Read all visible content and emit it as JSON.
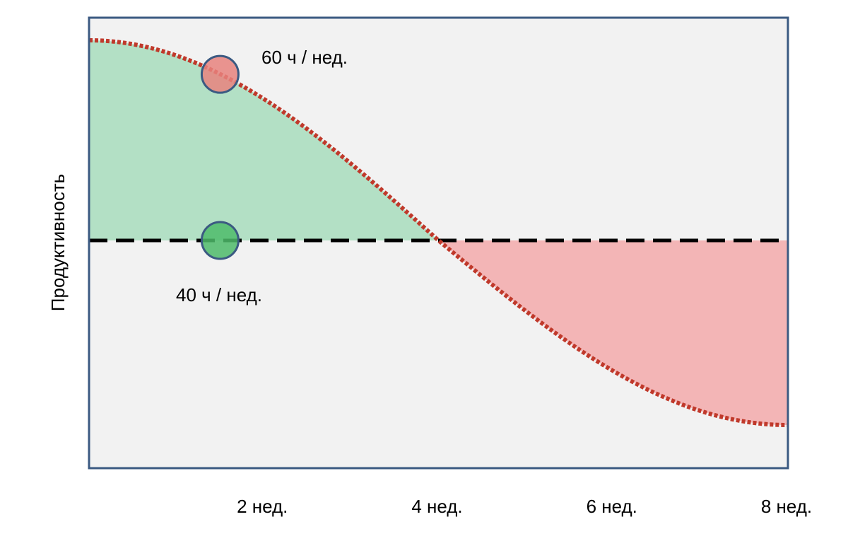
{
  "chart_data": {
    "type": "area",
    "title": "",
    "xlabel": "",
    "ylabel": "Продуктивность",
    "x_ticks": [
      {
        "x": 2,
        "label": "2 нед."
      },
      {
        "x": 4,
        "label": "4 нед."
      },
      {
        "x": 6,
        "label": "6 нед."
      },
      {
        "x": 8,
        "label": "8 нед."
      }
    ],
    "xlim": [
      0,
      8
    ],
    "ylim": [
      -1.25,
      1.25
    ],
    "grid": false,
    "legend": "none",
    "series": [
      {
        "x": [
          0,
          0.5,
          1,
          1.5,
          2,
          2.5,
          3,
          3.5,
          4,
          4.5,
          5,
          5.5,
          6,
          6.5,
          7,
          7.5,
          8
        ],
        "values": [
          1.0,
          0.98,
          0.92,
          0.83,
          0.71,
          0.56,
          0.38,
          0.2,
          0.0,
          -0.2,
          -0.38,
          -0.56,
          -0.71,
          -0.83,
          -0.92,
          -0.98,
          -1.0
        ],
        "color": "#c0392b",
        "style": "dotted"
      },
      {
        "x": [
          0,
          8
        ],
        "values": [
          0,
          0
        ],
        "color": "#000000",
        "style": "dashed"
      }
    ],
    "markers": [
      {
        "x": 1.5,
        "y": 0.83,
        "color": "#e8827e",
        "label": "60 ч / нед."
      },
      {
        "x": 1.5,
        "y": 0.0,
        "color": "#4dbb6a",
        "label": "40 ч / нед."
      }
    ],
    "colors": {
      "plot_background": "#f2f2f2",
      "frame": "#3b5a82",
      "gain_fill": "#b3e0c5",
      "loss_fill": "#f3b5b6"
    }
  }
}
